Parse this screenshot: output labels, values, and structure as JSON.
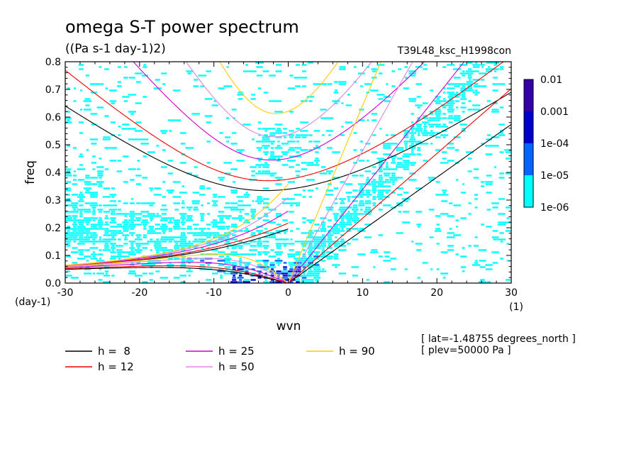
{
  "chart_data": {
    "type": "heatmap",
    "title": "omega S-T power spectrum",
    "subtitle": "((Pa s-1 day-1)2)",
    "run_label": "T39L48_ksc_H1998con",
    "xlabel": "wvn",
    "ylabel": "freq",
    "x_unit": "(1)",
    "y_unit": "(day-1)",
    "xlim": [
      -30,
      30
    ],
    "ylim": [
      0,
      0.8
    ],
    "x_ticks": [
      -30,
      -20,
      -10,
      0,
      10,
      20,
      30
    ],
    "x_tick_labels": [
      "-30",
      "-20",
      "-10",
      "0",
      "10",
      "20",
      "30"
    ],
    "y_ticks": [
      0,
      0.1,
      0.2,
      0.3,
      0.4,
      0.5,
      0.6,
      0.7,
      0.8
    ],
    "y_tick_labels": [
      "0.0",
      "0.1",
      "0.2",
      "0.3",
      "0.4",
      "0.5",
      "0.6",
      "0.7",
      "0.8"
    ],
    "colorbar": {
      "levels": [
        "1e-06",
        "1e-05",
        "1e-04",
        "0.001",
        "0.01"
      ],
      "colors": [
        "#00ffff",
        "#0066ff",
        "#0000cc",
        "#3300aa"
      ]
    },
    "dispersion_curves": [
      {
        "name": "h =  8",
        "h": 8,
        "color": "#000000"
      },
      {
        "name": "h = 12",
        "h": 12,
        "color": "#ee0000"
      },
      {
        "name": "h = 25",
        "h": 25,
        "color": "#cc00cc"
      },
      {
        "name": "h = 50",
        "h": 50,
        "color": "#dd88dd"
      },
      {
        "name": "h = 90",
        "h": 90,
        "color": "#ffcc00"
      }
    ],
    "annotations": [
      "[ lat=-1.48755 degrees_north ]",
      "[ plev=50000 Pa ]"
    ]
  }
}
